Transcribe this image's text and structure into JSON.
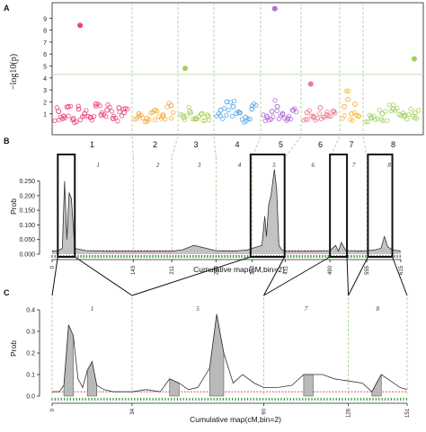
{
  "figure": {
    "panel_labels": [
      "A",
      "B",
      "C"
    ],
    "chromosomes": [
      "1",
      "2",
      "3",
      "4",
      "5",
      "6",
      "7",
      "8"
    ],
    "boxed_chromosomes": [
      "1",
      "5",
      "7",
      "8"
    ],
    "colors": {
      "chr1": "#e8457b",
      "chr2": "#f3a93b",
      "chr3": "#a8cf57",
      "chr4": "#5aa7e0",
      "chr5": "#b06fd6",
      "chr6": "#f07a8c",
      "chr7": "#f5b53d",
      "chr8": "#9ed15a",
      "divider": "#9ccf8a",
      "prob_line": "#333333",
      "qtl_fill": "#b9b9b9",
      "baseline": "#d9304b",
      "marker": "#3a9a3a"
    }
  },
  "chart_data": [
    {
      "panel": "A",
      "type": "scatter",
      "title": "",
      "xlabel": "",
      "ylabel": "−log10(p)",
      "ylim": [
        0,
        10
      ],
      "yticks": [
        "1",
        "2",
        "3",
        "4",
        "5",
        "6",
        "7",
        "8",
        "9"
      ],
      "threshold": 4.3,
      "highlight_points": [
        {
          "chromosome": "1",
          "y": 8.4
        },
        {
          "chromosome": "3",
          "y": 4.8
        },
        {
          "chromosome": "5",
          "y": 9.8
        },
        {
          "chromosome": "6",
          "y": 3.5
        },
        {
          "chromosome": "8",
          "y": 5.6
        }
      ],
      "series": [
        {
          "name": "1",
          "x": [
            0.05,
            0.12,
            0.18,
            0.25,
            0.32,
            0.4,
            0.48,
            0.55,
            0.62,
            0.7,
            0.78,
            0.86,
            0.93
          ],
          "values": [
            1.2,
            0.8,
            1.6,
            0.6,
            1.4,
            1.0,
            0.7,
            1.8,
            0.9,
            1.3,
            0.6,
            1.5,
            1.1
          ]
        },
        {
          "name": "2",
          "x": [
            0.1,
            0.3,
            0.5,
            0.7,
            0.9
          ],
          "values": [
            1.0,
            0.6,
            1.3,
            0.8,
            1.7
          ]
        },
        {
          "name": "3",
          "x": [
            0.1,
            0.3,
            0.5,
            0.7,
            0.9
          ],
          "values": [
            0.7,
            1.2,
            0.6,
            1.0,
            0.8
          ]
        },
        {
          "name": "4",
          "x": [
            0.1,
            0.25,
            0.4,
            0.55,
            0.7,
            0.85
          ],
          "values": [
            1.3,
            2.0,
            1.6,
            1.1,
            0.7,
            1.4
          ]
        },
        {
          "name": "5",
          "x": [
            0.1,
            0.25,
            0.4,
            0.55,
            0.7,
            0.85
          ],
          "values": [
            0.8,
            1.2,
            1.6,
            1.0,
            0.6,
            1.3
          ]
        },
        {
          "name": "6",
          "x": [
            0.1,
            0.3,
            0.5,
            0.7,
            0.9
          ],
          "values": [
            1.1,
            0.7,
            1.5,
            0.9,
            1.2
          ]
        },
        {
          "name": "7",
          "x": [
            0.1,
            0.3,
            0.5,
            0.7,
            0.9
          ],
          "values": [
            1.6,
            2.2,
            1.0,
            1.8,
            0.8
          ]
        },
        {
          "name": "8",
          "x": [
            0.1,
            0.3,
            0.5,
            0.7,
            0.9
          ],
          "values": [
            0.7,
            1.0,
            1.4,
            0.8,
            1.1
          ]
        }
      ]
    },
    {
      "panel": "B",
      "type": "area",
      "title": "",
      "xlabel": "Cumulative map(cM,bin=2)",
      "ylabel": "Prob",
      "xlim": [
        0,
        615
      ],
      "ylim": [
        0,
        0.27
      ],
      "yticks": [
        "0.000",
        "0.050",
        "0.100",
        "0.150",
        "0.200",
        "0.250"
      ],
      "xtick_labels": [
        "0",
        "143",
        "211",
        "289",
        "353",
        "411",
        "490",
        "555",
        "615"
      ],
      "x": [
        0,
        10,
        18,
        22,
        26,
        30,
        34,
        40,
        60,
        100,
        143,
        180,
        211,
        230,
        250,
        289,
        320,
        345,
        353,
        370,
        375,
        378,
        382,
        386,
        392,
        396,
        400,
        405,
        411,
        450,
        490,
        500,
        505,
        510,
        518,
        540,
        555,
        570,
        580,
        586,
        592,
        600,
        615
      ],
      "values": [
        0.01,
        0.012,
        0.02,
        0.25,
        0.05,
        0.21,
        0.19,
        0.02,
        0.012,
        0.01,
        0.01,
        0.01,
        0.01,
        0.015,
        0.03,
        0.012,
        0.01,
        0.015,
        0.02,
        0.03,
        0.13,
        0.06,
        0.17,
        0.2,
        0.29,
        0.22,
        0.03,
        0.015,
        0.01,
        0.01,
        0.012,
        0.03,
        0.01,
        0.04,
        0.012,
        0.01,
        0.012,
        0.015,
        0.02,
        0.06,
        0.025,
        0.015,
        0.01
      ]
    },
    {
      "panel": "C",
      "type": "area",
      "title": "",
      "xlabel": "Cumulative map(cM,bin=2)",
      "ylabel": "Prob",
      "xlim": [
        0,
        151
      ],
      "ylim": [
        0,
        0.4
      ],
      "yticks": [
        "0.0",
        "0.1",
        "0.2",
        "0.3",
        "0.4"
      ],
      "xtick_labels": [
        "0",
        "34",
        "90",
        "126",
        "151"
      ],
      "segment_labels": [
        "1",
        "5",
        "7",
        "8"
      ],
      "x": [
        0,
        3,
        5,
        7,
        9,
        11,
        13,
        15,
        17,
        19,
        22,
        26,
        30,
        34,
        40,
        46,
        50,
        54,
        58,
        62,
        67,
        70,
        73,
        77,
        81,
        86,
        90,
        96,
        102,
        107,
        111,
        115,
        120,
        126,
        132,
        136,
        140,
        144,
        148,
        151
      ],
      "values": [
        0.02,
        0.02,
        0.05,
        0.33,
        0.28,
        0.08,
        0.04,
        0.12,
        0.16,
        0.05,
        0.03,
        0.02,
        0.02,
        0.02,
        0.03,
        0.02,
        0.08,
        0.06,
        0.03,
        0.04,
        0.13,
        0.38,
        0.2,
        0.06,
        0.1,
        0.06,
        0.04,
        0.04,
        0.05,
        0.1,
        0.1,
        0.1,
        0.08,
        0.07,
        0.06,
        0.02,
        0.1,
        0.07,
        0.04,
        0.03
      ]
    }
  ]
}
